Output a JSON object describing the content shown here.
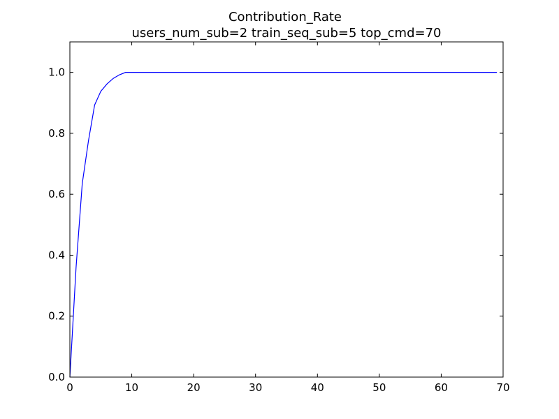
{
  "chart_data": {
    "type": "line",
    "title": "Contribution_Rate",
    "subtitle": "users_num_sub=2 train_seq_sub=5 top_cmd=70",
    "xlabel": "",
    "ylabel": "",
    "xlim": [
      0,
      70
    ],
    "ylim": [
      0,
      1.1
    ],
    "xticks": [
      0,
      10,
      20,
      30,
      40,
      50,
      60,
      70
    ],
    "yticks": [
      0.0,
      0.2,
      0.4,
      0.6,
      0.8,
      1.0
    ],
    "xtick_labels": [
      "0",
      "10",
      "20",
      "30",
      "40",
      "50",
      "60",
      "70"
    ],
    "ytick_labels": [
      "0.0",
      "0.2",
      "0.4",
      "0.6",
      "0.8",
      "1.0"
    ],
    "grid": false,
    "series": [
      {
        "color": "#0000ff",
        "x": [
          0,
          1,
          2,
          3,
          4,
          5,
          6,
          7,
          8,
          9,
          10,
          15,
          20,
          25,
          30,
          35,
          40,
          45,
          50,
          55,
          60,
          65,
          69
        ],
        "y": [
          0.0,
          0.36,
          0.635,
          0.775,
          0.893,
          0.938,
          0.962,
          0.98,
          0.992,
          1.0,
          1.0,
          1.0,
          1.0,
          1.0,
          1.0,
          1.0,
          1.0,
          1.0,
          1.0,
          1.0,
          1.0,
          1.0,
          1.0
        ]
      }
    ]
  }
}
